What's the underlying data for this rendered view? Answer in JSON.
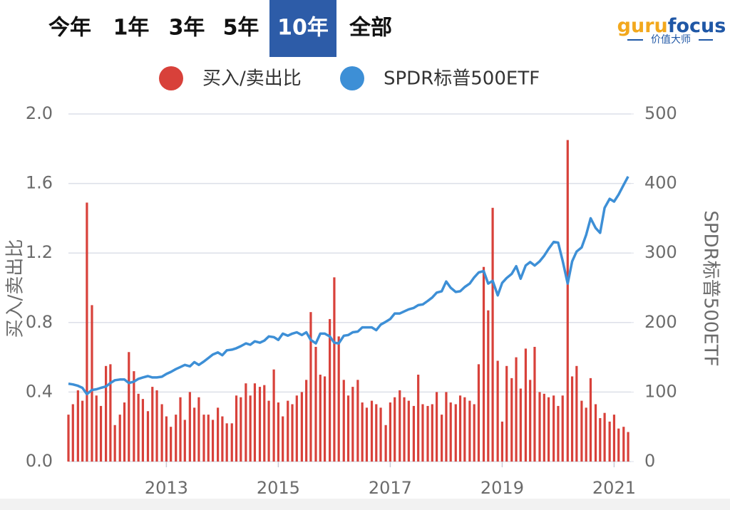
{
  "tabs": [
    "今年",
    "1年",
    "3年",
    "5年",
    "10年",
    "全部"
  ],
  "selected_tab": 4,
  "logo": {
    "parts": [
      "guru",
      "focus"
    ],
    "tagline": "价值大师"
  },
  "chart_data": {
    "type": "combo",
    "y_label": "买入/卖出比",
    "y2_label": "SPDR标普500ETF",
    "xlim": [
      2011.25,
      2021.3
    ],
    "xticks": [
      2013,
      2015,
      2017,
      2019,
      2021
    ],
    "ylim": [
      0,
      2.0
    ],
    "yticks": [
      {
        "value": 0,
        "label": "0.0"
      },
      0.4,
      0.8,
      1.2,
      1.6,
      {
        "value": 2.0,
        "label": "2.0"
      }
    ],
    "y2lim": [
      0,
      500
    ],
    "y2ticks": [
      0,
      100,
      200,
      300,
      400,
      500
    ],
    "grid": true,
    "legend": "top",
    "x": [
      2011.25,
      2011.33,
      2011.42,
      2011.5,
      2011.58,
      2011.67,
      2011.75,
      2011.83,
      2011.92,
      2012,
      2012.08,
      2012.17,
      2012.25,
      2012.33,
      2012.42,
      2012.5,
      2012.58,
      2012.67,
      2012.75,
      2012.83,
      2012.92,
      2013,
      2013.08,
      2013.17,
      2013.25,
      2013.33,
      2013.42,
      2013.5,
      2013.58,
      2013.67,
      2013.75,
      2013.83,
      2013.92,
      2014,
      2014.08,
      2014.17,
      2014.25,
      2014.33,
      2014.42,
      2014.5,
      2014.58,
      2014.67,
      2014.75,
      2014.83,
      2014.92,
      2015,
      2015.08,
      2015.17,
      2015.25,
      2015.33,
      2015.42,
      2015.5,
      2015.58,
      2015.67,
      2015.75,
      2015.83,
      2015.92,
      2016,
      2016.08,
      2016.17,
      2016.25,
      2016.33,
      2016.42,
      2016.5,
      2016.58,
      2016.67,
      2016.75,
      2016.83,
      2016.92,
      2017,
      2017.08,
      2017.17,
      2017.25,
      2017.33,
      2017.42,
      2017.5,
      2017.58,
      2017.67,
      2017.75,
      2017.83,
      2017.92,
      2018,
      2018.08,
      2018.17,
      2018.25,
      2018.33,
      2018.42,
      2018.5,
      2018.58,
      2018.67,
      2018.75,
      2018.83,
      2018.92,
      2019,
      2019.08,
      2019.17,
      2019.25,
      2019.33,
      2019.42,
      2019.5,
      2019.58,
      2019.67,
      2019.75,
      2019.83,
      2019.92,
      2020,
      2020.08,
      2020.17,
      2020.25,
      2020.33,
      2020.42,
      2020.5,
      2020.58,
      2020.67,
      2020.75,
      2020.83,
      2020.92,
      2021,
      2021.08,
      2021.17,
      2021.25
    ],
    "series": [
      {
        "name": "买入/卖出比",
        "type": "bar",
        "color": "#d8413a",
        "values": [
          0.27,
          0.33,
          0.41,
          0.35,
          1.49,
          0.9,
          0.38,
          0.32,
          0.55,
          0.56,
          0.21,
          0.27,
          0.34,
          0.63,
          0.52,
          0.39,
          0.36,
          0.29,
          0.43,
          0.41,
          0.33,
          0.26,
          0.2,
          0.27,
          0.37,
          0.24,
          0.4,
          0.31,
          0.37,
          0.27,
          0.27,
          0.24,
          0.31,
          0.26,
          0.22,
          0.22,
          0.38,
          0.37,
          0.45,
          0.38,
          0.45,
          0.43,
          0.44,
          0.35,
          0.53,
          0.34,
          0.26,
          0.35,
          0.33,
          0.38,
          0.4,
          0.47,
          0.86,
          0.66,
          0.5,
          0.49,
          0.82,
          1.06,
          0.72,
          0.47,
          0.38,
          0.43,
          0.47,
          0.34,
          0.31,
          0.35,
          0.33,
          0.31,
          0.21,
          0.34,
          0.37,
          0.41,
          0.37,
          0.35,
          0.32,
          0.5,
          0.33,
          0.32,
          0.33,
          0.4,
          0.27,
          0.4,
          0.34,
          0.33,
          0.38,
          0.37,
          0.35,
          0.33,
          0.56,
          1.12,
          0.87,
          1.46,
          0.58,
          0.23,
          0.55,
          0.48,
          0.6,
          0.42,
          0.65,
          0.47,
          0.66,
          0.4,
          0.39,
          0.37,
          0.38,
          0.32,
          0.38,
          1.85,
          0.49,
          0.55,
          0.35,
          0.31,
          0.48,
          0.33,
          0.25,
          0.28,
          0.23,
          0.27,
          0.19,
          0.2,
          0.17
        ]
      },
      {
        "name": "SPDR标普500ETF",
        "type": "line",
        "axis": "y2",
        "color": "#3d8fd6",
        "values": [
          112,
          111,
          109,
          106,
          97,
          103,
          104,
          106,
          108,
          113,
          117,
          118,
          118,
          113,
          115,
          119,
          121,
          123,
          121,
          121,
          122,
          126,
          129,
          133,
          136,
          139,
          137,
          143,
          139,
          144,
          149,
          154,
          157,
          153,
          160,
          161,
          163,
          166,
          170,
          168,
          173,
          171,
          174,
          180,
          179,
          175,
          184,
          181,
          184,
          186,
          182,
          186,
          175,
          170,
          184,
          184,
          180,
          171,
          170,
          181,
          182,
          186,
          187,
          193,
          193,
          193,
          189,
          197,
          201,
          205,
          213,
          213,
          216,
          219,
          221,
          225,
          226,
          231,
          236,
          243,
          245,
          259,
          250,
          244,
          245,
          251,
          256,
          265,
          272,
          274,
          256,
          260,
          239,
          257,
          264,
          270,
          281,
          263,
          282,
          287,
          282,
          288,
          296,
          306,
          316,
          315,
          289,
          256,
          288,
          302,
          308,
          326,
          350,
          336,
          329,
          365,
          378,
          374,
          384,
          398,
          410
        ]
      }
    ]
  }
}
